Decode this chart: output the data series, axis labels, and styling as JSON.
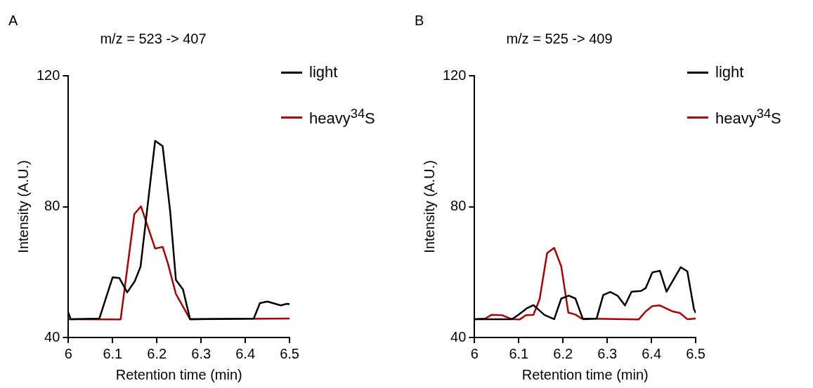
{
  "chart_data": [
    {
      "type": "line",
      "title": "m/z = 523 -> 407",
      "xlabel": "Retention time (min)",
      "ylabel": "Intensity (A.U.)",
      "annotations": [
        "A"
      ],
      "xlim": [
        6,
        6.5
      ],
      "xticks": [
        6,
        6.1,
        6.2,
        6.3,
        6.4,
        6.5
      ],
      "ylim": [
        40,
        120
      ],
      "yticks": [
        40,
        80,
        120
      ],
      "grid": false,
      "legend": "top right",
      "marker": "none",
      "line_style": "solid",
      "series": [
        {
          "name": "light",
          "color": "#000000",
          "x": [
            6.0,
            6.005,
            6.07,
            6.1,
            6.115,
            6.133,
            6.15,
            6.163,
            6.196,
            6.213,
            6.23,
            6.243,
            6.259,
            6.275,
            6.419,
            6.433,
            6.45,
            6.48,
            6.494,
            6.5
          ],
          "values": [
            47.6,
            45.6,
            45.8,
            58.4,
            58.2,
            53.8,
            57.2,
            61.6,
            100.1,
            98.5,
            78.6,
            57.6,
            54.7,
            45.6,
            45.8,
            50.5,
            51,
            49.8,
            50.3,
            50.2
          ]
        },
        {
          "name": "heavy$^{34}$S",
          "color": "#b00000",
          "x": [
            6.0,
            6.118,
            6.149,
            6.164,
            6.196,
            6.213,
            6.225,
            6.243,
            6.275,
            6.5
          ],
          "values": [
            45.6,
            45.5,
            77.7,
            80.1,
            67.2,
            67.7,
            62.6,
            53.3,
            45.6,
            45.8
          ]
        }
      ]
    },
    {
      "type": "line",
      "title": "m/z = 525 -> 409",
      "xlabel": "Retention time (min)",
      "ylabel": "Intensity (A.U.)",
      "annotations": [
        "B"
      ],
      "xlim": [
        6,
        6.5
      ],
      "xticks": [
        6,
        6.1,
        6.2,
        6.3,
        6.4,
        6.5
      ],
      "ylim": [
        40,
        120
      ],
      "yticks": [
        40,
        80,
        120
      ],
      "grid": false,
      "legend": "top right",
      "marker": "none",
      "line_style": "solid",
      "series": [
        {
          "name": "light",
          "color": "#000000",
          "x": [
            6.0,
            6.085,
            6.099,
            6.119,
            6.133,
            6.158,
            6.18,
            6.196,
            6.213,
            6.228,
            6.245,
            6.276,
            6.291,
            6.307,
            6.323,
            6.34,
            6.355,
            6.376,
            6.387,
            6.402,
            6.419,
            6.434,
            6.466,
            6.481,
            6.496,
            6.5
          ],
          "values": [
            45.6,
            45.6,
            46.9,
            49.0,
            49.9,
            46.9,
            45.6,
            51.9,
            52.8,
            51.9,
            45.6,
            45.8,
            53.0,
            53.9,
            52.8,
            49.8,
            54.0,
            54.2,
            55.1,
            59.9,
            60.4,
            54.0,
            61.5,
            60.2,
            48.7,
            47.5
          ]
        },
        {
          "name": "heavy$^{34}$S",
          "color": "#b00000",
          "x": [
            6.0,
            6.024,
            6.038,
            6.063,
            6.08,
            6.088,
            6.102,
            6.116,
            6.133,
            6.147,
            6.164,
            6.18,
            6.196,
            6.212,
            6.228,
            6.242,
            6.371,
            6.387,
            6.402,
            6.419,
            6.447,
            6.464,
            6.481,
            6.5
          ],
          "values": [
            45.6,
            45.8,
            46.9,
            46.8,
            45.8,
            45.6,
            45.5,
            46.8,
            46.9,
            51.7,
            65.8,
            67.4,
            61.7,
            47.6,
            47.0,
            45.8,
            45.5,
            48.0,
            49.6,
            49.8,
            48.0,
            47.5,
            45.6,
            45.8
          ]
        }
      ]
    }
  ]
}
